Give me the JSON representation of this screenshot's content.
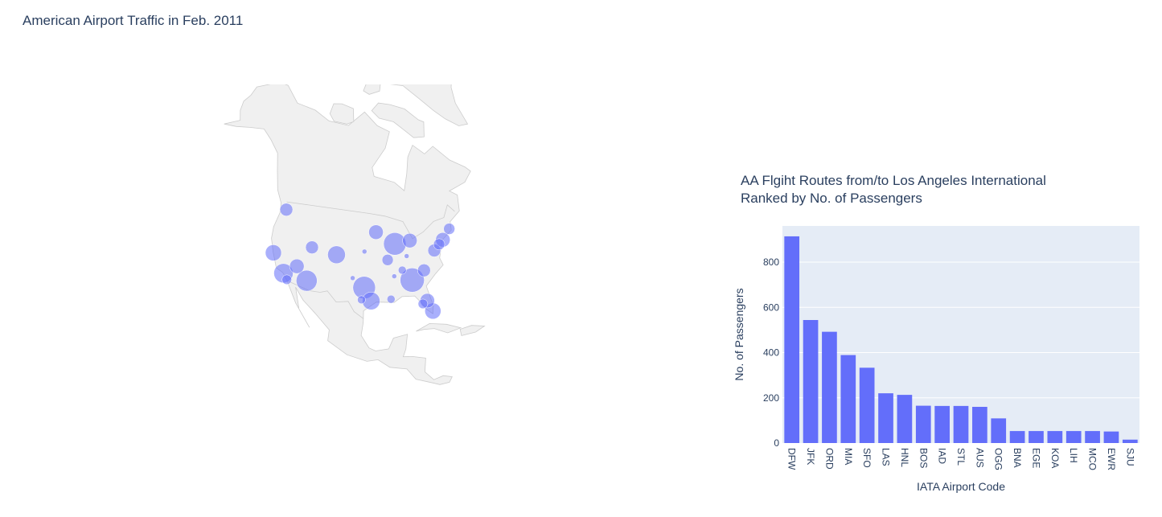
{
  "map": {
    "title": "American Airport Traffic in Feb. 2011"
  },
  "bar": {
    "title_line1": "AA Flgiht Routes from/to Los Angeles International",
    "title_line2": "Ranked by No. of Passengers"
  },
  "colors": {
    "bar": "#636efa",
    "plot_bg": "#e5ecf6",
    "land": "#f0f0f0",
    "coast": "#cccccc",
    "bubble": "#636efa",
    "text": "#2a3f5f"
  },
  "chart_data": [
    {
      "type": "scatter",
      "subtype": "bubble-map",
      "title": "American Airport Traffic in Feb. 2011",
      "projection": "orthographic",
      "points": [
        {
          "lon": -118.4,
          "lat": 33.9,
          "size": 12
        },
        {
          "lon": -122.4,
          "lat": 37.6,
          "size": 10
        },
        {
          "lon": -122.3,
          "lat": 47.4,
          "size": 8
        },
        {
          "lon": -112.0,
          "lat": 33.4,
          "size": 13
        },
        {
          "lon": -104.7,
          "lat": 39.9,
          "size": 11
        },
        {
          "lon": -97.0,
          "lat": 32.9,
          "size": 14
        },
        {
          "lon": -95.3,
          "lat": 29.9,
          "size": 11
        },
        {
          "lon": -87.9,
          "lat": 42.0,
          "size": 14
        },
        {
          "lon": -84.4,
          "lat": 33.6,
          "size": 15
        },
        {
          "lon": -80.3,
          "lat": 25.8,
          "size": 10
        },
        {
          "lon": -73.8,
          "lat": 40.6,
          "size": 9
        },
        {
          "lon": -71.0,
          "lat": 42.4,
          "size": 7
        },
        {
          "lon": -93.2,
          "lat": 44.9,
          "size": 9
        },
        {
          "lon": -83.4,
          "lat": 42.2,
          "size": 9
        },
        {
          "lon": -90.4,
          "lat": 38.7,
          "size": 7
        },
        {
          "lon": -81.3,
          "lat": 28.4,
          "size": 9
        },
        {
          "lon": -115.2,
          "lat": 36.1,
          "size": 9
        },
        {
          "lon": -111.9,
          "lat": 40.8,
          "size": 8
        },
        {
          "lon": -77.0,
          "lat": 38.9,
          "size": 8
        },
        {
          "lon": -75.2,
          "lat": 39.9,
          "size": 7
        },
        {
          "lon": -80.9,
          "lat": 35.2,
          "size": 8
        },
        {
          "lon": -86.7,
          "lat": 36.1,
          "size": 5
        },
        {
          "lon": -97.7,
          "lat": 30.2,
          "size": 5
        },
        {
          "lon": -90.3,
          "lat": 30.0,
          "size": 5
        },
        {
          "lon": -96.8,
          "lat": 40.8,
          "size": 3
        },
        {
          "lon": -100.0,
          "lat": 35.0,
          "size": 3
        },
        {
          "lon": -89.0,
          "lat": 35.0,
          "size": 3
        },
        {
          "lon": -85.0,
          "lat": 39.0,
          "size": 3
        },
        {
          "lon": -82.5,
          "lat": 27.9,
          "size": 6
        },
        {
          "lon": -117.2,
          "lat": 32.7,
          "size": 6
        }
      ]
    },
    {
      "type": "bar",
      "title": "AA Flgiht Routes from/to Los Angeles International Ranked by No. of Passengers",
      "xlabel": "IATA Airport Code",
      "ylabel": "No. of Passengers",
      "categories": [
        "DFW",
        "JFK",
        "ORD",
        "MIA",
        "SFO",
        "LAS",
        "HNL",
        "BOS",
        "IAD",
        "STL",
        "AUS",
        "OGG",
        "BNA",
        "EGE",
        "KOA",
        "LIH",
        "MCO",
        "EWR",
        "SJU"
      ],
      "values": [
        914,
        544,
        492,
        389,
        333,
        220,
        213,
        165,
        164,
        164,
        160,
        109,
        53,
        53,
        53,
        53,
        53,
        51,
        15
      ],
      "ylim": [
        0,
        960
      ],
      "yticks": [
        0,
        200,
        400,
        600,
        800
      ],
      "grid": true
    }
  ]
}
